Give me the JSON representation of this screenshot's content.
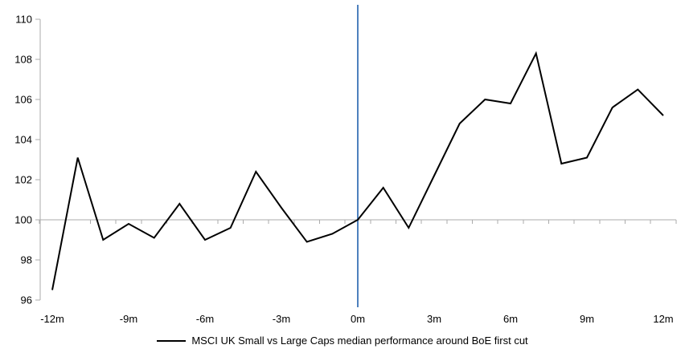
{
  "chart_data": {
    "type": "line",
    "title": "",
    "legend": "MSCI UK Small vs Large Caps median performance around BoE first cut",
    "x_unit": "months relative to BoE first cut",
    "x": [
      -12,
      -11,
      -10,
      -9,
      -8,
      -7,
      -6,
      -5,
      -4,
      -3,
      -2,
      -1,
      0,
      1,
      2,
      3,
      4,
      5,
      6,
      7,
      8,
      9,
      10,
      11,
      12
    ],
    "series": [
      {
        "name": "MSCI UK Small vs Large Caps median performance around BoE first cut",
        "values": [
          96.5,
          103.1,
          99.0,
          99.8,
          99.1,
          100.8,
          99.0,
          99.6,
          102.4,
          100.6,
          98.9,
          99.3,
          100.0,
          101.6,
          99.6,
          102.2,
          104.8,
          106.0,
          105.8,
          108.3,
          102.8,
          103.1,
          105.6,
          106.5,
          105.2
        ]
      }
    ],
    "x_tick_months": [
      -12,
      -9,
      -6,
      -3,
      0,
      3,
      6,
      9,
      12
    ],
    "x_tick_labels": [
      "-12m",
      "-9m",
      "-6m",
      "-3m",
      "0m",
      "3m",
      "6m",
      "9m",
      "12m"
    ],
    "y_ticks": [
      96,
      98,
      100,
      102,
      104,
      106,
      108,
      110
    ],
    "ylim": [
      96,
      110
    ],
    "xlim": [
      -12.5,
      12.5
    ],
    "baseline_value": 100,
    "event_line_x": 0,
    "grid": "off",
    "legend_position": "bottom",
    "colors": {
      "series": "#000000",
      "axis": "#ABABAB",
      "event_line": "#4E81BD",
      "label": "#000000"
    }
  }
}
